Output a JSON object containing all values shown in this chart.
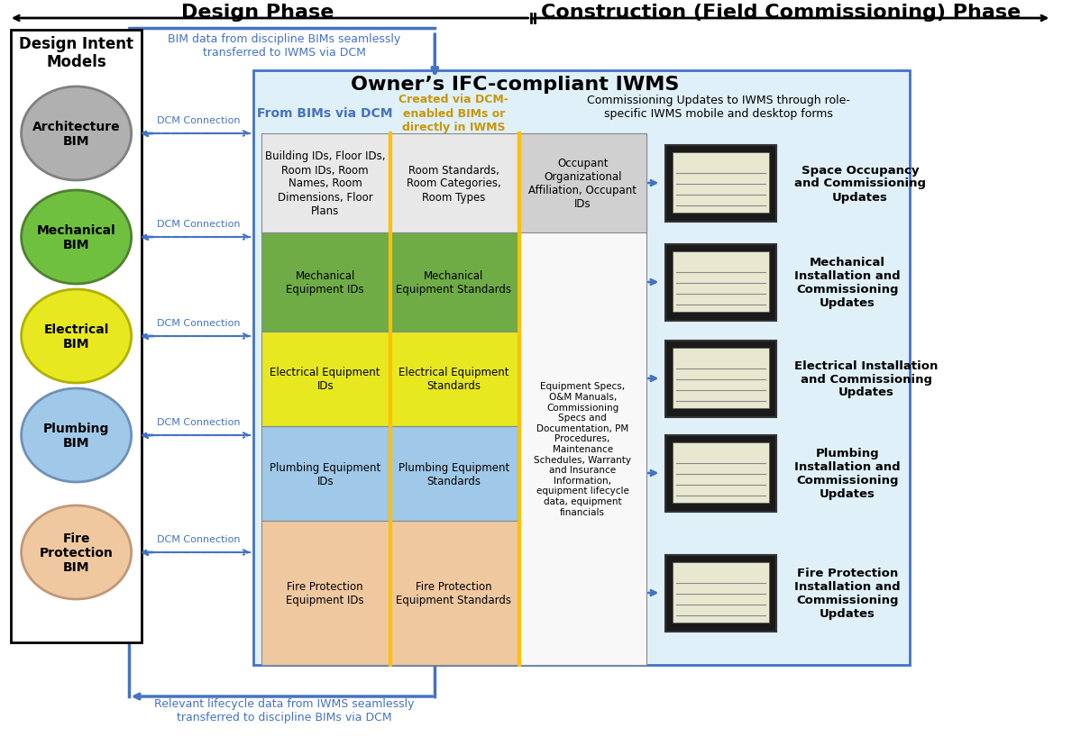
{
  "title_design": "Design Phase",
  "title_construction": "Construction (Field Commissioning) Phase",
  "bim_top_text": "BIM data from discipline BIMs seamlessly\ntransferred to IWMS via DCM",
  "bim_bottom_text": "Relevant lifecycle data from IWMS seamlessly\ntransferred to discipline BIMs via DCM",
  "dim_box_title": "Design Intent\nModels",
  "bim_labels": [
    "Architecture\nBIM",
    "Mechanical\nBIM",
    "Electrical\nBIM",
    "Plumbing\nBIM",
    "Fire\nProtection\nBIM"
  ],
  "bim_colors": [
    "#b0b0b0",
    "#70c040",
    "#e8e820",
    "#a0c8e8",
    "#f0c8a0"
  ],
  "bim_edge_colors": [
    "#808080",
    "#508030",
    "#b0b000",
    "#7090b8",
    "#c09878"
  ],
  "dcm_labels": [
    "DCM Connection",
    "DCM Connection",
    "DCM Connection",
    "DCM Connection",
    "DCM Connection"
  ],
  "iwms_title": "Owner’s IFC-compliant IWMS",
  "iwms_bg": "#e0f0f8",
  "col1_header": "From BIMs via DCM",
  "col2_header": "Created via DCM-\nenabled BIMs or\ndirectly in IWMS",
  "col3_header": "Commissioning Updates to IWMS through role-\nspecific IWMS mobile and desktop forms",
  "col1_color": "#4472c4",
  "col2_color": "#ffc000",
  "row_labels_col1": [
    "Building IDs, Floor IDs,\nRoom IDs, Room\nNames, Room\nDimensions, Floor\nPlans",
    "Mechanical\nEquipment IDs",
    "Electrical Equipment\nIDs",
    "Plumbing Equipment\nIDs",
    "Fire Protection\nEquipment IDs"
  ],
  "row_labels_col2": [
    "Room Standards,\nRoom Categories,\nRoom Types",
    "Mechanical\nEquipment Standards",
    "Electrical Equipment\nStandards",
    "Plumbing Equipment\nStandards",
    "Fire Protection\nEquipment Standards"
  ],
  "row_colors_col1": [
    "#e8e8e8",
    "#6fac46",
    "#e8e820",
    "#a0c8e8",
    "#f0c8a0"
  ],
  "row_colors_col2": [
    "#e8e8e8",
    "#6fac46",
    "#e8e820",
    "#a0c8e8",
    "#f0c8a0"
  ],
  "row_label_col3": "Equipment Specs,\nO&M Manuals,\nCommissioning\nSpecs and\nDocumentation, PM\nProcedures,\nMaintenance\nSchedules, Warranty\nand Insurance\nInformation,\nequipment lifecycle\ndata, equipment\nfinancials",
  "row3_color": "#e8e8e8",
  "right_labels": [
    "Space Occupancy\nand Commissioning\nUpdates",
    "Mechanical\nInstallation and\nCommissioning\nUpdates",
    "Electrical Installation\nand Commissioning\nUpdates",
    "Plumbing\nInstallation and\nCommissioning\nUpdates",
    "Fire Protection\nInstallation and\nCommissioning\nUpdates"
  ],
  "background_color": "#ffffff"
}
